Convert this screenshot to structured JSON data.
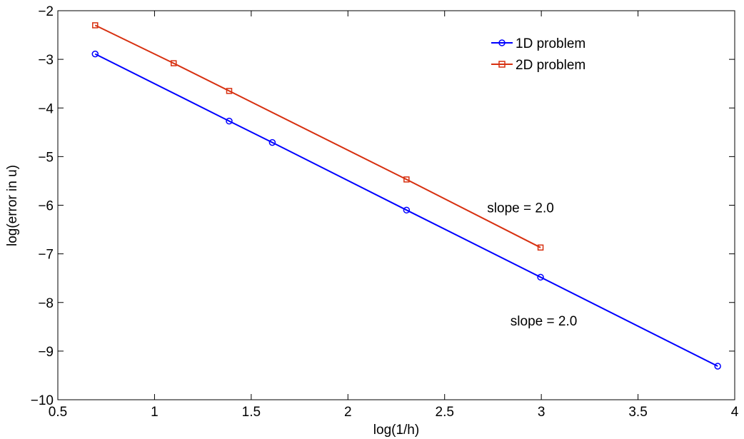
{
  "chart_data": {
    "type": "line",
    "title": "",
    "xlabel": "log(1/h)",
    "ylabel": "log(error in u)",
    "xlim": [
      0.5,
      4
    ],
    "ylim": [
      -10,
      -2
    ],
    "xticks": [
      0.5,
      1,
      1.5,
      2,
      2.5,
      3,
      3.5,
      4
    ],
    "xtick_labels": [
      "0.5",
      "1",
      "1.5",
      "2",
      "2.5",
      "3",
      "3.5",
      "4"
    ],
    "yticks": [
      -10,
      -9,
      -8,
      -7,
      -6,
      -5,
      -4,
      -3,
      -2
    ],
    "ytick_labels": [
      "−10",
      "−9",
      "−8",
      "−7",
      "−6",
      "−5",
      "−4",
      "−3",
      "−2"
    ],
    "grid": false,
    "legend_position": "top-right",
    "series": [
      {
        "name": "1D problem",
        "color": "#0000ff",
        "marker": "circle",
        "points": [
          [
            0.693,
            -2.89
          ],
          [
            1.386,
            -4.27
          ],
          [
            1.609,
            -4.71
          ],
          [
            2.303,
            -6.1
          ],
          [
            2.996,
            -7.48
          ],
          [
            3.912,
            -9.31
          ]
        ]
      },
      {
        "name": "2D problem",
        "color": "#d73010",
        "marker": "square",
        "points": [
          [
            0.693,
            -2.3
          ],
          [
            1.099,
            -3.08
          ],
          [
            1.386,
            -3.65
          ],
          [
            2.303,
            -5.47
          ],
          [
            2.996,
            -6.87
          ]
        ]
      }
    ],
    "annotations": [
      {
        "text": "slope = 2.0",
        "x": 2.72,
        "y": -6.15
      },
      {
        "text": "slope = 2.0",
        "x": 2.84,
        "y": -8.47
      }
    ]
  }
}
